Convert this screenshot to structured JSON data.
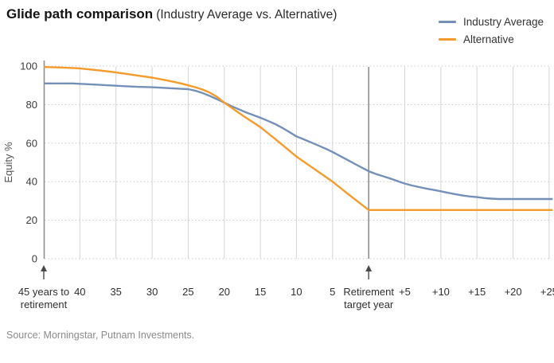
{
  "header": {
    "title": "Glide path comparison",
    "subtitle": "(Industry Average vs. Alternative)"
  },
  "legend": {
    "items": [
      {
        "label": "Industry Average",
        "color": "#7490B8"
      },
      {
        "label": "Alternative",
        "color": "#F59B2B"
      }
    ]
  },
  "footer": {
    "source": "Source: Morningstar, Putnam Investments."
  },
  "colors": {
    "industry_average": "#7490B8",
    "alternative": "#F59B2B",
    "grid": "#D4D4D4",
    "grid_dotted": "#C8C8C8",
    "axis": "#8F8F8F",
    "retirement_line": "#7F7F7F",
    "arrow": "#4A4A4A",
    "tick_text": "#3C3C3C",
    "source_text": "#8A8A8A"
  },
  "chart_data": {
    "type": "line",
    "title": "Glide path comparison (Industry Average vs. Alternative)",
    "x_unit": "years to retirement (+N = years after retirement target year)",
    "grid": "vertical solid per tick, horizontal dotted per 20%",
    "legend_position": "top-right",
    "x_axis": {
      "ticks": [
        {
          "value": 45,
          "label": [
            "45 years to",
            "retirement"
          ],
          "arrow": true,
          "emphasis": false
        },
        {
          "value": 40,
          "label": [
            "40"
          ],
          "arrow": false,
          "emphasis": false
        },
        {
          "value": 35,
          "label": [
            "35"
          ],
          "arrow": false,
          "emphasis": false
        },
        {
          "value": 30,
          "label": [
            "30"
          ],
          "arrow": false,
          "emphasis": false
        },
        {
          "value": 25,
          "label": [
            "25"
          ],
          "arrow": false,
          "emphasis": false
        },
        {
          "value": 20,
          "label": [
            "20"
          ],
          "arrow": false,
          "emphasis": false
        },
        {
          "value": 15,
          "label": [
            "15"
          ],
          "arrow": false,
          "emphasis": false
        },
        {
          "value": 10,
          "label": [
            "10"
          ],
          "arrow": false,
          "emphasis": false
        },
        {
          "value": 5,
          "label": [
            "5"
          ],
          "arrow": false,
          "emphasis": false
        },
        {
          "value": 0,
          "label": [
            "Retirement",
            "target year"
          ],
          "arrow": true,
          "emphasis": true
        },
        {
          "value": -5,
          "label": [
            "+5"
          ],
          "arrow": false,
          "emphasis": false
        },
        {
          "value": -10,
          "label": [
            "+10"
          ],
          "arrow": false,
          "emphasis": false
        },
        {
          "value": -15,
          "label": [
            "+15"
          ],
          "arrow": false,
          "emphasis": false
        },
        {
          "value": -20,
          "label": [
            "+20"
          ],
          "arrow": false,
          "emphasis": false
        },
        {
          "value": -25,
          "label": [
            "+25"
          ],
          "arrow": false,
          "emphasis": false
        }
      ]
    },
    "y_axis": {
      "label": "Equity %",
      "ticks": [
        0,
        20,
        40,
        60,
        80,
        100
      ],
      "range": [
        0,
        100
      ]
    },
    "series": [
      {
        "name": "Industry Average",
        "color": "#7490B8",
        "points": [
          [
            45,
            91
          ],
          [
            41,
            91
          ],
          [
            40,
            90.8
          ],
          [
            38,
            90.4
          ],
          [
            36,
            90
          ],
          [
            34,
            89.6
          ],
          [
            32,
            89.2
          ],
          [
            30,
            89
          ],
          [
            28,
            88.6
          ],
          [
            26,
            88.2
          ],
          [
            25,
            88
          ],
          [
            24,
            87.2
          ],
          [
            23,
            86
          ],
          [
            22,
            84.5
          ],
          [
            21,
            82.8
          ],
          [
            20,
            81
          ],
          [
            19,
            79.2
          ],
          [
            18,
            77.6
          ],
          [
            17,
            76
          ],
          [
            16,
            74.6
          ],
          [
            15,
            73.2
          ],
          [
            14,
            71.6
          ],
          [
            13,
            70
          ],
          [
            12,
            68
          ],
          [
            11,
            65.8
          ],
          [
            10,
            63.5
          ],
          [
            9,
            62
          ],
          [
            8,
            60.4
          ],
          [
            7,
            58.8
          ],
          [
            6,
            57.2
          ],
          [
            5,
            55.4
          ],
          [
            4,
            53.4
          ],
          [
            3,
            51.4
          ],
          [
            2,
            49.4
          ],
          [
            1,
            47.4
          ],
          [
            0,
            45.4
          ],
          [
            -1,
            44
          ],
          [
            -2,
            42.8
          ],
          [
            -3,
            41.6
          ],
          [
            -4,
            40.3
          ],
          [
            -5,
            39
          ],
          [
            -6,
            38
          ],
          [
            -7,
            37.2
          ],
          [
            -8,
            36.4
          ],
          [
            -9,
            35.7
          ],
          [
            -10,
            35
          ],
          [
            -11,
            34.2
          ],
          [
            -12,
            33.5
          ],
          [
            -13,
            32.8
          ],
          [
            -14,
            32.3
          ],
          [
            -15,
            32
          ],
          [
            -16,
            31.5
          ],
          [
            -17,
            31.2
          ],
          [
            -18,
            31
          ],
          [
            -20,
            31
          ],
          [
            -25.5,
            31
          ]
        ]
      },
      {
        "name": "Alternative",
        "color": "#F59B2B",
        "points": [
          [
            45,
            99.5
          ],
          [
            43,
            99.3
          ],
          [
            41,
            99
          ],
          [
            40,
            98.8
          ],
          [
            38,
            98
          ],
          [
            36,
            97.2
          ],
          [
            34,
            96.2
          ],
          [
            32,
            95.1
          ],
          [
            30,
            94
          ],
          [
            29,
            93.3
          ],
          [
            28,
            92.6
          ],
          [
            27,
            91.8
          ],
          [
            26,
            91
          ],
          [
            25,
            90
          ],
          [
            24,
            89
          ],
          [
            23,
            87.8
          ],
          [
            22,
            86.2
          ],
          [
            21,
            84
          ],
          [
            20,
            81
          ],
          [
            19,
            78.4
          ],
          [
            18,
            75.8
          ],
          [
            17,
            73.2
          ],
          [
            16,
            70.8
          ],
          [
            15,
            68.3
          ],
          [
            14,
            65.3
          ],
          [
            13,
            62.3
          ],
          [
            12,
            59.2
          ],
          [
            11,
            56.1
          ],
          [
            10,
            53
          ],
          [
            9,
            50.4
          ],
          [
            8,
            47.8
          ],
          [
            7,
            45.2
          ],
          [
            6,
            42.6
          ],
          [
            5,
            40
          ],
          [
            4,
            37
          ],
          [
            3,
            34
          ],
          [
            2,
            31.1
          ],
          [
            1,
            28.2
          ],
          [
            0,
            25.3
          ],
          [
            -25.5,
            25.3
          ]
        ]
      }
    ]
  }
}
